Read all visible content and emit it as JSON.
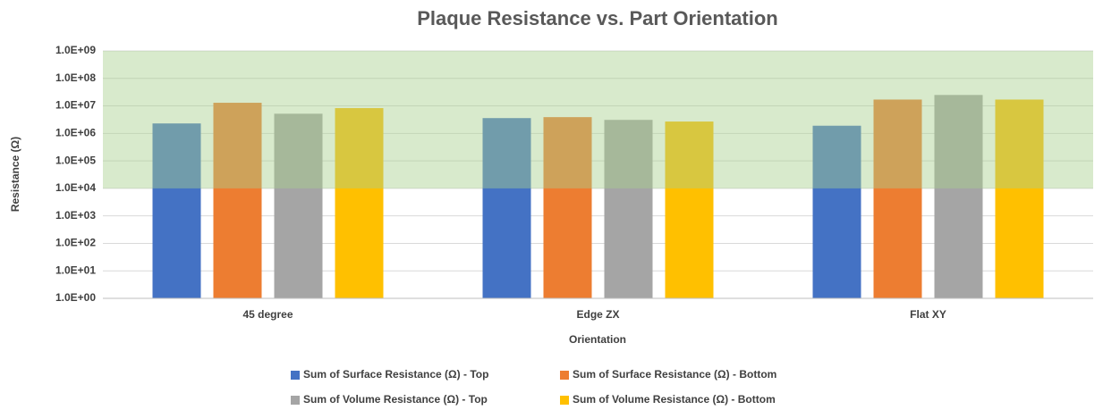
{
  "chart_data": {
    "type": "bar",
    "title": "Plaque Resistance vs. Part Orientation",
    "x_label": "Orientation",
    "y_label": "Resistance (Ω)",
    "categories": [
      "45 degree",
      "Edge ZX",
      "Flat XY"
    ],
    "series": [
      {
        "name": "Sum of Surface Resistance (Ω) - Top",
        "color": "#4472c4",
        "values": [
          2300000,
          3600000,
          1900000
        ]
      },
      {
        "name": "Sum of Surface Resistance (Ω) - Bottom",
        "color": "#ed7d31",
        "values": [
          13000000,
          3900000,
          17000000
        ]
      },
      {
        "name": "Sum of Volume Resistance (Ω) - Top",
        "color": "#a5a5a5",
        "values": [
          5200000,
          3100000,
          25000000
        ]
      },
      {
        "name": "Sum of Volume Resistance (Ω) - Bottom",
        "color": "#ffc000",
        "values": [
          8300000,
          2700000,
          17000000
        ]
      }
    ],
    "yscale": "log",
    "ylim": [
      1,
      1000000000
    ],
    "yticks": [
      {
        "value": 1,
        "label": "1.0E+00"
      },
      {
        "value": 10,
        "label": "1.0E+01"
      },
      {
        "value": 100,
        "label": "1.0E+02"
      },
      {
        "value": 1000,
        "label": "1.0E+03"
      },
      {
        "value": 10000,
        "label": "1.0E+04"
      },
      {
        "value": 100000,
        "label": "1.0E+05"
      },
      {
        "value": 1000000,
        "label": "1.0E+06"
      },
      {
        "value": 10000000,
        "label": "1.0E+07"
      },
      {
        "value": 100000000,
        "label": "1.0E+08"
      },
      {
        "value": 1000000000,
        "label": "1.0E+09"
      }
    ],
    "shaded_range": [
      10000,
      1000000000
    ],
    "shaded_color": "#a9d18e",
    "grid": true,
    "legend": "bottom"
  }
}
